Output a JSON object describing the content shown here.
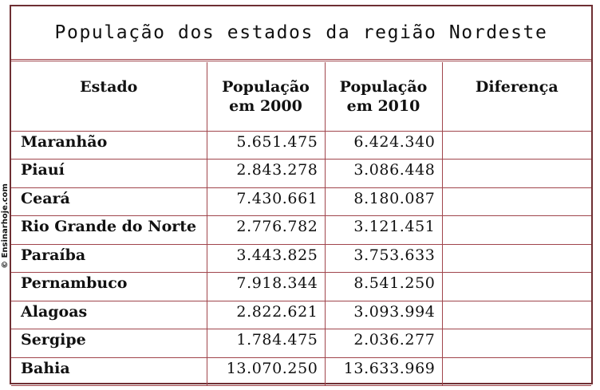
{
  "title": "População dos estados da região Nordeste",
  "watermark": "© Ensinarhoje.com",
  "table": {
    "headers": {
      "estado": "Estado",
      "pop2000_line1": "População",
      "pop2000_line2": "em 2000",
      "pop2010_line1": "População",
      "pop2010_line2": "em 2010",
      "diferenca": "Diferença"
    },
    "rows": [
      {
        "estado": "Maranhão",
        "pop2000": "5.651.475",
        "pop2010": "6.424.340",
        "diferenca": ""
      },
      {
        "estado": "Piauí",
        "pop2000": "2.843.278",
        "pop2010": "3.086.448",
        "diferenca": ""
      },
      {
        "estado": "Ceará",
        "pop2000": "7.430.661",
        "pop2010": "8.180.087",
        "diferenca": ""
      },
      {
        "estado": "Rio Grande do Norte",
        "pop2000": "2.776.782",
        "pop2010": "3.121.451",
        "diferenca": ""
      },
      {
        "estado": "Paraíba",
        "pop2000": "3.443.825",
        "pop2010": "3.753.633",
        "diferenca": ""
      },
      {
        "estado": "Pernambuco",
        "pop2000": "7.918.344",
        "pop2010": "8.541.250",
        "diferenca": ""
      },
      {
        "estado": "Alagoas",
        "pop2000": "2.822.621",
        "pop2010": "3.093.994",
        "diferenca": ""
      },
      {
        "estado": "Sergipe",
        "pop2000": "1.784.475",
        "pop2010": "2.036.277",
        "diferenca": ""
      },
      {
        "estado": "Bahia",
        "pop2000": "13.070.250",
        "pop2010": "13.633.969",
        "diferenca": ""
      }
    ]
  }
}
